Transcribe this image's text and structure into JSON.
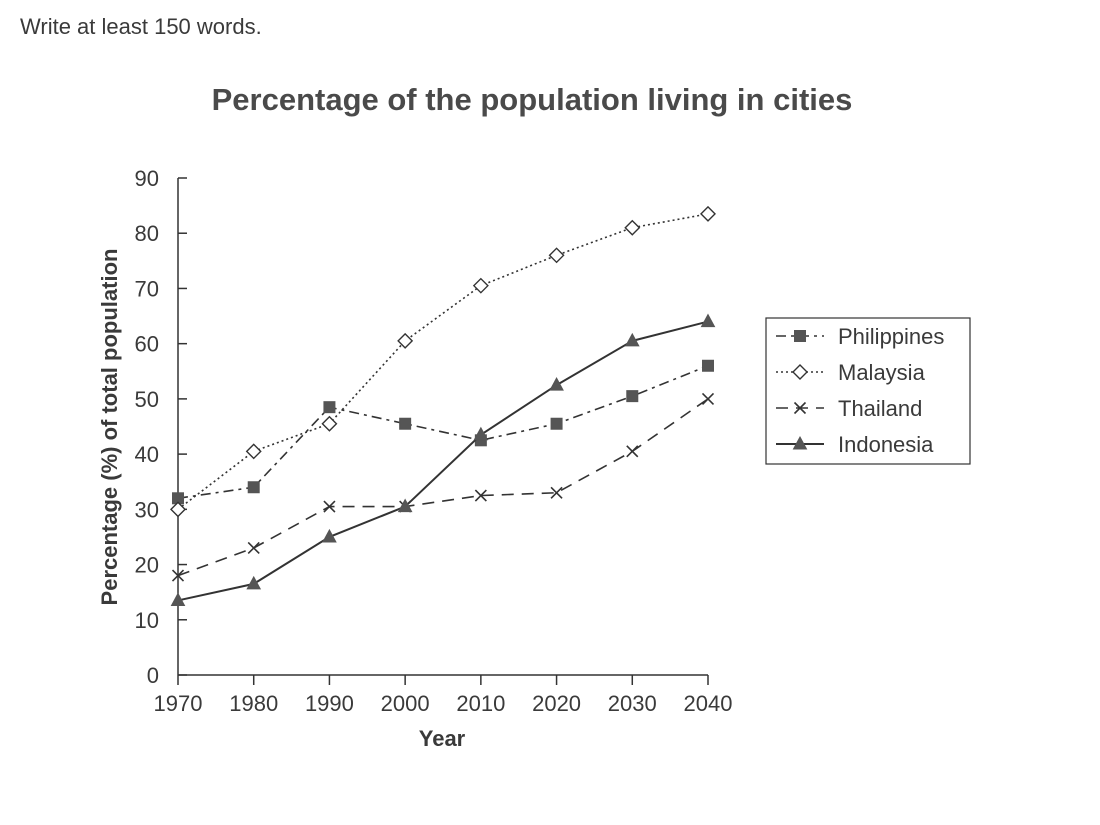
{
  "header": {
    "instruction": "Write at least 150 words."
  },
  "chart_data": {
    "type": "line",
    "title": "Percentage of the population living in cities",
    "xlabel": "Year",
    "ylabel": "Percentage (%) of total population",
    "x": [
      1970,
      1980,
      1990,
      2000,
      2010,
      2020,
      2030,
      2040
    ],
    "ylim": [
      0,
      90
    ],
    "yticks": [
      0,
      10,
      20,
      30,
      40,
      50,
      60,
      70,
      80,
      90
    ],
    "grid": false,
    "legend_position": "right",
    "series": [
      {
        "name": "Philippines",
        "values": [
          32,
          34,
          48.5,
          45.5,
          42.5,
          45.5,
          50.5,
          56
        ],
        "line": "dash-dot",
        "marker": "square",
        "color": "#333333"
      },
      {
        "name": "Malaysia",
        "values": [
          30,
          40.5,
          45.5,
          60.5,
          70.5,
          76,
          81,
          83.5
        ],
        "line": "dotted",
        "marker": "diamond-open",
        "color": "#333333"
      },
      {
        "name": "Thailand",
        "values": [
          18,
          23,
          30.5,
          30.5,
          32.5,
          33,
          40.5,
          50
        ],
        "line": "dashed",
        "marker": "cross",
        "color": "#333333"
      },
      {
        "name": "Indonesia",
        "values": [
          13.5,
          16.5,
          25,
          30.5,
          43.5,
          52.5,
          60.5,
          64
        ],
        "line": "solid",
        "marker": "triangle",
        "color": "#333333"
      }
    ]
  }
}
